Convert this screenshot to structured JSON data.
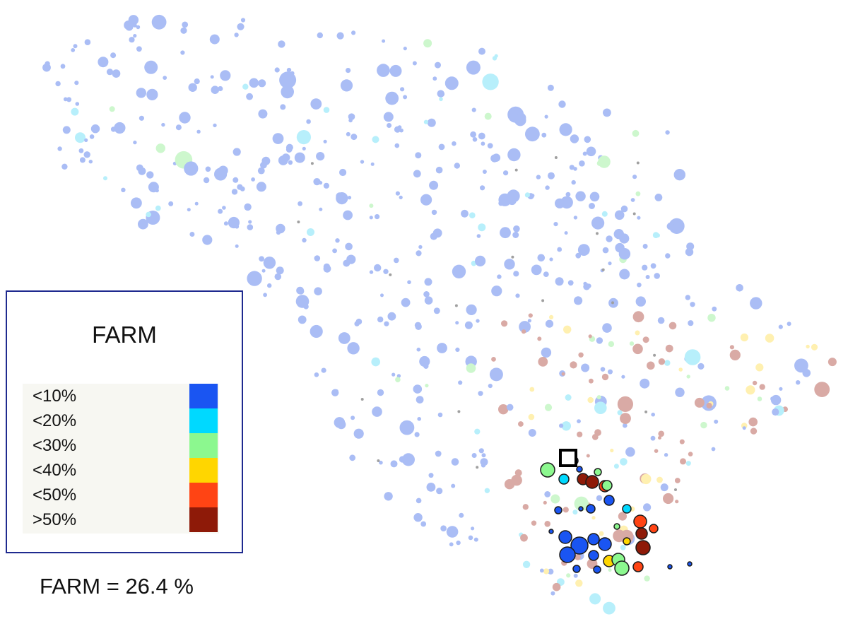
{
  "legend": {
    "title": "FARM",
    "items": [
      {
        "label": "<10%",
        "color": "#1a55f2"
      },
      {
        "label": "<20%",
        "color": "#00d9ff"
      },
      {
        "label": "<30%",
        "color": "#8cf88f"
      },
      {
        "label": "<40%",
        "color": "#ffd600"
      },
      {
        "label": "<50%",
        "color": "#ff4414"
      },
      {
        "label": ">50%",
        "color": "#8e1a08"
      }
    ]
  },
  "summary": {
    "text": "FARM = 26.4 %"
  },
  "map": {
    "border_color": "#1f2a8f",
    "background_point_color": "#aabdf5"
  }
}
